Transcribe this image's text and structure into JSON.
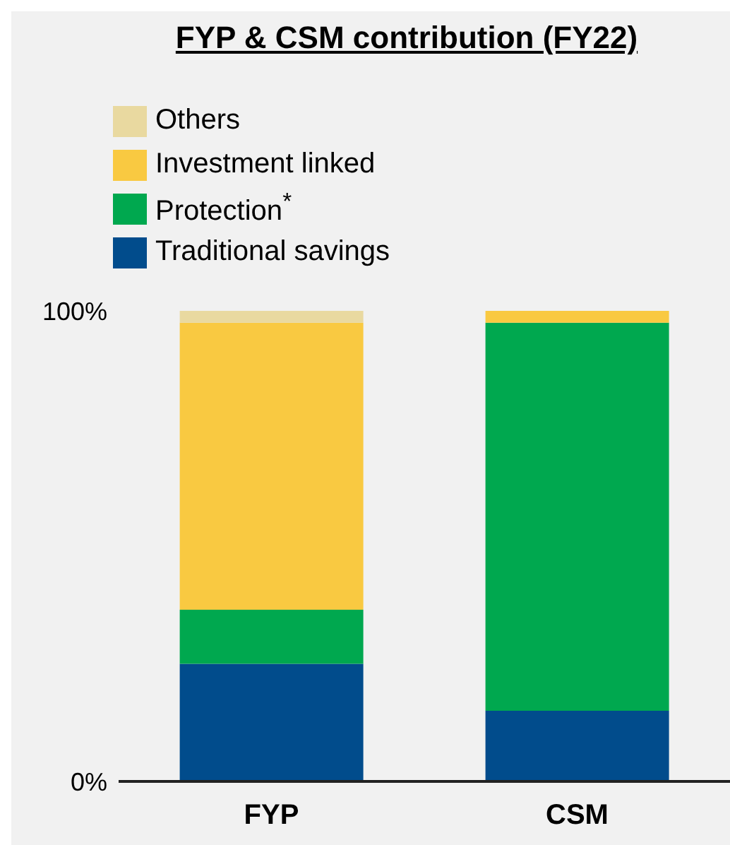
{
  "chart_data": {
    "type": "bar",
    "title": "FYP & CSM contribution (FY22)",
    "categories": [
      "FYP",
      "CSM"
    ],
    "stacked": true,
    "series": [
      {
        "name": "Traditional savings",
        "color": "#014c8c",
        "values": [
          25,
          15
        ]
      },
      {
        "name": "Protection$^{*}$",
        "color": "#00a84f",
        "values": [
          11.5,
          82.5
        ]
      },
      {
        "name": "Investment linked",
        "color": "#f9c941",
        "values": [
          61,
          2.5
        ]
      },
      {
        "name": "Others",
        "color": "#e9d9a0",
        "values": [
          2.5,
          0
        ]
      }
    ],
    "ylim": [
      0,
      100
    ],
    "yticks": [
      {
        "value": 0,
        "label": "0%"
      },
      {
        "value": 100,
        "label": "100%"
      }
    ],
    "grid": false,
    "legend": "top left"
  }
}
